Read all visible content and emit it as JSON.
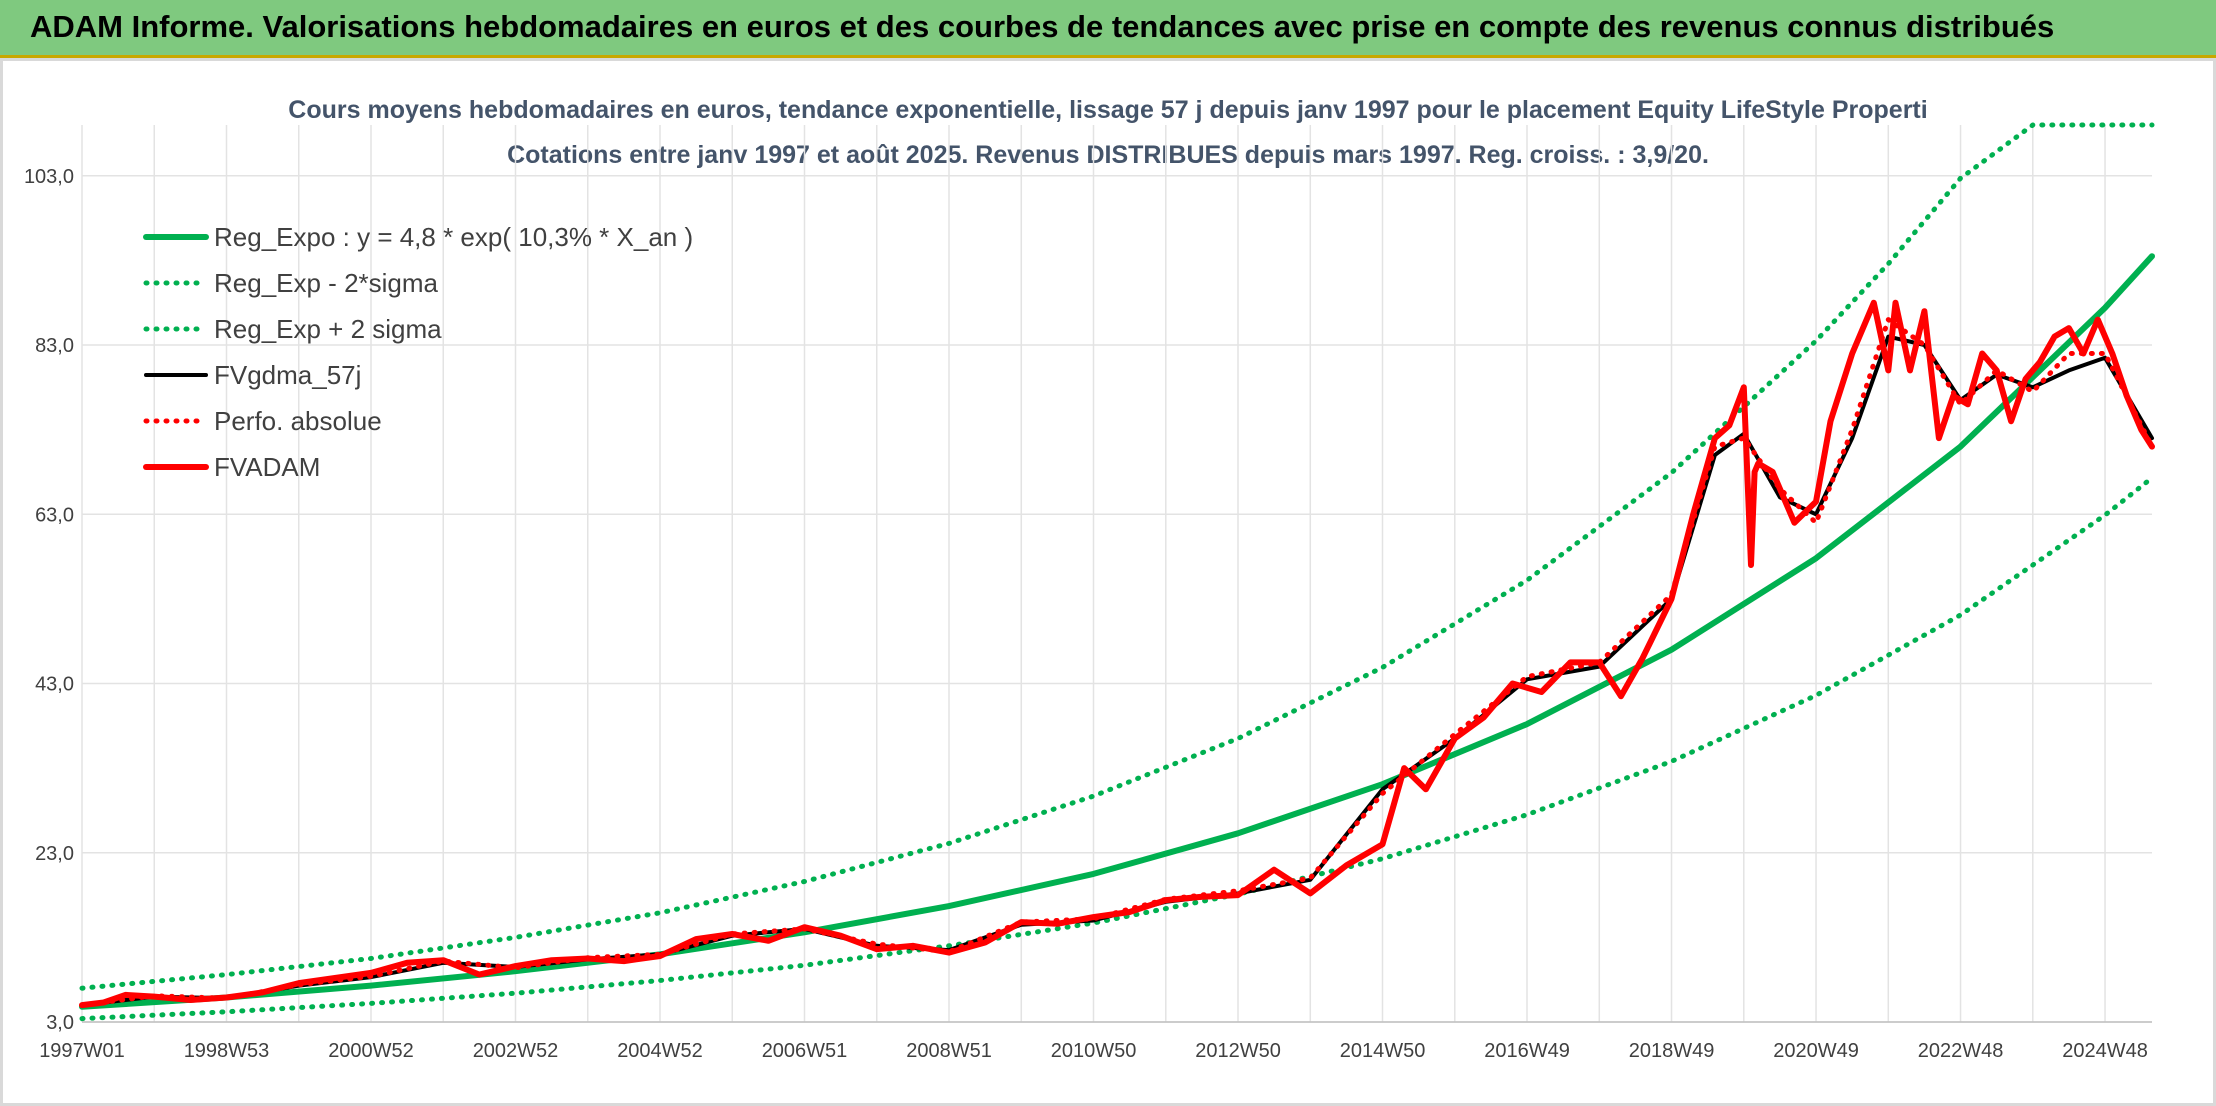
{
  "header": {
    "title": "ADAM Informe. Valorisations hebdomadaires en euros et des courbes de tendances avec prise en compte des revenus connus distribués"
  },
  "chart_data": {
    "type": "line",
    "title": "Cours moyens hebdomadaires en euros, tendance exponentielle, lissage 57 j depuis janv 1997 pour le placement Equity LifeStyle Properti",
    "subtitle": "Cotations entre janv 1997 et août 2025. Revenus DISTRIBUES depuis mars 1997. Reg. croiss. : 3,9/20.",
    "xlabel": "",
    "ylabel": "",
    "xlim": [
      1997.0,
      2025.65
    ],
    "ylim": [
      3.0,
      109.0
    ],
    "x_ticks": [
      {
        "x": 1997.0,
        "label": "1997W01"
      },
      {
        "x": 1999.0,
        "label": "1998W53"
      },
      {
        "x": 2001.0,
        "label": "2000W52"
      },
      {
        "x": 2003.0,
        "label": "2002W52"
      },
      {
        "x": 2005.0,
        "label": "2004W52"
      },
      {
        "x": 2007.0,
        "label": "2006W51"
      },
      {
        "x": 2009.0,
        "label": "2008W51"
      },
      {
        "x": 2011.0,
        "label": "2010W50"
      },
      {
        "x": 2013.0,
        "label": "2012W50"
      },
      {
        "x": 2015.0,
        "label": "2014W50"
      },
      {
        "x": 2017.0,
        "label": "2016W49"
      },
      {
        "x": 2019.0,
        "label": "2018W49"
      },
      {
        "x": 2021.0,
        "label": "2020W49"
      },
      {
        "x": 2023.0,
        "label": "2022W48"
      },
      {
        "x": 2025.0,
        "label": "2024W48"
      }
    ],
    "y_ticks": [
      {
        "y": 3,
        "label": "3,0"
      },
      {
        "y": 23,
        "label": "23,0"
      },
      {
        "y": 43,
        "label": "43,0"
      },
      {
        "y": 63,
        "label": "63,0"
      },
      {
        "y": 83,
        "label": "83,0"
      },
      {
        "y": 103,
        "label": "103,0"
      }
    ],
    "grid": true,
    "legend_position": "top-left",
    "series": [
      {
        "name": "Reg_Expo : y = 4,8 * exp( 10,3% *  X_an )",
        "color": "#00b050",
        "style": "solid",
        "x": [
          1997.0,
          1999.0,
          2001.0,
          2003.0,
          2005.0,
          2007.0,
          2009.0,
          2011.0,
          2013.0,
          2015.0,
          2017.0,
          2019.0,
          2021.0,
          2023.0,
          2025.0,
          2025.65
        ],
        "y": [
          4.8,
          5.9,
          7.3,
          9.0,
          11.0,
          13.6,
          16.7,
          20.5,
          25.3,
          31.1,
          38.2,
          47.0,
          57.8,
          71.0,
          87.4,
          93.5
        ]
      },
      {
        "name": "Reg_Exp - 2*sigma",
        "color": "#00b050",
        "style": "dotted",
        "x": [
          1997.0,
          1999.0,
          2001.0,
          2003.0,
          2005.0,
          2007.0,
          2009.0,
          2011.0,
          2013.0,
          2015.0,
          2017.0,
          2019.0,
          2021.0,
          2023.0,
          2025.0,
          2025.65
        ],
        "y": [
          3.4,
          4.2,
          5.2,
          6.4,
          7.9,
          9.7,
          12.0,
          14.7,
          18.1,
          22.3,
          27.5,
          33.8,
          41.6,
          51.1,
          62.9,
          67.3
        ]
      },
      {
        "name": "Reg_Exp + 2 sigma",
        "color": "#00b050",
        "style": "dotted",
        "x": [
          1997.0,
          1999.0,
          2001.0,
          2003.0,
          2005.0,
          2007.0,
          2009.0,
          2011.0,
          2013.0,
          2015.0,
          2017.0,
          2019.0,
          2021.0,
          2022.0,
          2023.0,
          2024.0,
          2025.65
        ],
        "y": [
          7.0,
          8.6,
          10.5,
          13.0,
          15.9,
          19.6,
          24.1,
          29.7,
          36.5,
          44.9,
          55.2,
          67.9,
          83.5,
          92.6,
          102.7,
          109.0,
          109.0
        ]
      },
      {
        "name": "FVgdma_57j",
        "color": "#000000",
        "style": "solid",
        "x": [
          1997.0,
          1998.0,
          1999.0,
          2000.0,
          2001.0,
          2002.0,
          2003.0,
          2004.0,
          2005.0,
          2006.0,
          2007.0,
          2008.0,
          2009.0,
          2010.0,
          2011.0,
          2012.0,
          2013.0,
          2014.0,
          2015.0,
          2016.0,
          2017.0,
          2018.0,
          2019.0,
          2019.6,
          2020.0,
          2020.5,
          2021.0,
          2021.5,
          2022.0,
          2022.5,
          2023.0,
          2023.5,
          2024.0,
          2024.5,
          2025.0,
          2025.65
        ],
        "y": [
          5.0,
          6.0,
          5.8,
          7.3,
          8.3,
          10.0,
          9.5,
          10.4,
          11.0,
          13.2,
          14.0,
          12.0,
          11.5,
          14.5,
          15.0,
          17.2,
          18.2,
          19.8,
          30.5,
          36.5,
          43.5,
          45.0,
          53.0,
          70.0,
          72.5,
          65.0,
          63.0,
          72.0,
          84.0,
          83.0,
          76.5,
          79.5,
          78.0,
          80.0,
          81.5,
          72.0
        ]
      },
      {
        "name": "Perfo. absolue",
        "color": "#ff0000",
        "style": "dotted",
        "x": [
          1997.0,
          1998.0,
          1999.0,
          2000.0,
          2001.0,
          2002.0,
          2003.0,
          2004.0,
          2005.0,
          2006.0,
          2007.0,
          2008.0,
          2009.0,
          2010.0,
          2011.0,
          2012.0,
          2013.0,
          2014.0,
          2015.0,
          2016.0,
          2017.0,
          2018.0,
          2019.0,
          2019.6,
          2020.0,
          2020.5,
          2021.0,
          2021.5,
          2022.0,
          2022.5,
          2023.0,
          2023.5,
          2024.0,
          2024.5,
          2025.0,
          2025.65
        ],
        "y": [
          5.0,
          6.1,
          5.8,
          7.4,
          8.4,
          10.2,
          9.4,
          10.6,
          11.0,
          13.4,
          14.0,
          12.2,
          11.3,
          14.8,
          15.2,
          17.5,
          18.5,
          20.0,
          30.0,
          37.0,
          43.8,
          45.5,
          53.5,
          71.0,
          72.0,
          66.0,
          62.0,
          73.0,
          86.0,
          83.0,
          76.0,
          80.0,
          77.5,
          82.0,
          82.0,
          71.0
        ]
      },
      {
        "name": "FVADAM",
        "color": "#ff0000",
        "style": "solid",
        "x": [
          1997.0,
          1997.3,
          1997.6,
          1998.0,
          1998.5,
          1999.0,
          1999.5,
          2000.0,
          2000.5,
          2001.0,
          2001.5,
          2002.0,
          2002.5,
          2003.0,
          2003.5,
          2004.0,
          2004.5,
          2005.0,
          2005.5,
          2006.0,
          2006.5,
          2007.0,
          2007.5,
          2008.0,
          2008.5,
          2009.0,
          2009.5,
          2010.0,
          2010.5,
          2011.0,
          2011.5,
          2012.0,
          2012.5,
          2013.0,
          2013.5,
          2014.0,
          2014.5,
          2015.0,
          2015.3,
          2015.6,
          2016.0,
          2016.4,
          2016.8,
          2017.2,
          2017.6,
          2018.0,
          2018.3,
          2018.6,
          2019.0,
          2019.3,
          2019.6,
          2019.8,
          2020.0,
          2020.1,
          2020.15,
          2020.2,
          2020.4,
          2020.7,
          2021.0,
          2021.2,
          2021.5,
          2021.8,
          2022.0,
          2022.1,
          2022.3,
          2022.5,
          2022.7,
          2022.9,
          2023.1,
          2023.3,
          2023.5,
          2023.7,
          2023.9,
          2024.1,
          2024.3,
          2024.5,
          2024.7,
          2024.9,
          2025.1,
          2025.3,
          2025.5,
          2025.65
        ],
        "y": [
          5.0,
          5.3,
          6.2,
          6.0,
          5.6,
          5.9,
          6.5,
          7.6,
          8.2,
          8.8,
          10.0,
          10.3,
          8.6,
          9.6,
          10.3,
          10.5,
          10.2,
          10.8,
          12.8,
          13.4,
          12.6,
          14.2,
          13.2,
          11.6,
          12.0,
          11.2,
          12.4,
          14.8,
          14.6,
          15.4,
          16.0,
          17.4,
          17.8,
          18.0,
          21.0,
          18.2,
          21.5,
          24.0,
          33.0,
          30.5,
          36.5,
          39.0,
          43.0,
          42.0,
          45.5,
          45.5,
          41.5,
          46.0,
          53.0,
          63.0,
          72.0,
          73.5,
          78.0,
          57.0,
          68.0,
          69.0,
          68.0,
          62.0,
          64.5,
          74.0,
          82.0,
          88.0,
          80.0,
          88.0,
          80.0,
          87.0,
          72.0,
          77.0,
          76.0,
          82.0,
          80.0,
          74.0,
          79.0,
          81.0,
          84.0,
          85.0,
          82.0,
          86.0,
          82.0,
          77.0,
          73.0,
          71.0
        ]
      }
    ]
  }
}
